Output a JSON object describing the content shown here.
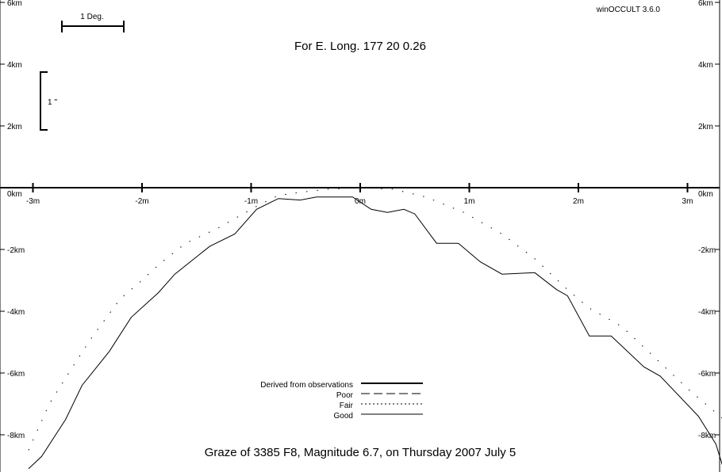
{
  "app_version": "winOCCULT 3.6.0",
  "header": {
    "longitude_text": "For E. Long.  177 20  0.26"
  },
  "footer": {
    "graze_text": "Graze of     3385   F8,  Magnitude   6.7,  on Thursday  2007  July   5"
  },
  "scales": {
    "degree_label": "1 Deg.",
    "arcsec_label": "1 ''"
  },
  "legend": {
    "derived": "Derived from observations",
    "poor": "Poor",
    "fair": "Fair",
    "good": "Good"
  },
  "chart_data": {
    "type": "line",
    "xlabel": "",
    "ylabel": "",
    "x_ticks": [
      "-3m",
      "-2m",
      "-1m",
      "0m",
      "1m",
      "2m",
      "3m"
    ],
    "y_ticks": [
      "6km",
      "4km",
      "2km",
      "0km",
      "-2km",
      "-4km",
      "-6km",
      "-8km"
    ],
    "xlim": [
      -3.1,
      3.33
    ],
    "ylim": [
      -9.1,
      6.2
    ],
    "x_unit": "minutes",
    "y_unit": "km",
    "series": [
      {
        "name": "Good",
        "style": "solid",
        "points": [
          [
            -3.04,
            -9.1
          ],
          [
            -2.92,
            -8.7
          ],
          [
            -2.7,
            -7.5
          ],
          [
            -2.55,
            -6.4
          ],
          [
            -2.3,
            -5.3
          ],
          [
            -2.1,
            -4.2
          ],
          [
            -1.85,
            -3.4
          ],
          [
            -1.7,
            -2.8
          ],
          [
            -1.38,
            -1.9
          ],
          [
            -1.15,
            -1.5
          ],
          [
            -0.95,
            -0.7
          ],
          [
            -0.75,
            -0.35
          ],
          [
            -0.55,
            -0.4
          ],
          [
            -0.4,
            -0.3
          ],
          [
            -0.25,
            -0.3
          ],
          [
            -0.07,
            -0.3
          ],
          [
            0.1,
            -0.7
          ],
          [
            0.25,
            -0.8
          ],
          [
            0.4,
            -0.7
          ],
          [
            0.5,
            -0.85
          ],
          [
            0.7,
            -1.8
          ],
          [
            0.9,
            -1.8
          ],
          [
            1.1,
            -2.4
          ],
          [
            1.3,
            -2.8
          ],
          [
            1.6,
            -2.75
          ],
          [
            1.8,
            -3.3
          ],
          [
            1.9,
            -3.5
          ],
          [
            2.1,
            -4.8
          ],
          [
            2.3,
            -4.8
          ],
          [
            2.6,
            -5.8
          ],
          [
            2.75,
            -6.1
          ],
          [
            3.1,
            -7.4
          ],
          [
            3.26,
            -8.3
          ],
          [
            3.33,
            -9.1
          ]
        ]
      },
      {
        "name": "Fair",
        "style": "dotted",
        "points": [
          [
            -3.04,
            -8.5
          ],
          [
            -2.85,
            -7.0
          ],
          [
            -2.6,
            -5.6
          ],
          [
            -2.45,
            -4.8
          ],
          [
            -2.2,
            -3.6
          ],
          [
            -2.0,
            -3.0
          ],
          [
            -1.85,
            -2.5
          ],
          [
            -1.6,
            -1.8
          ],
          [
            -1.3,
            -1.3
          ],
          [
            -0.95,
            -0.6
          ],
          [
            -0.75,
            -0.25
          ],
          [
            -0.55,
            -0.15
          ],
          [
            -0.3,
            -0.05
          ],
          [
            0.0,
            0.0
          ],
          [
            0.3,
            -0.05
          ],
          [
            0.6,
            -0.3
          ],
          [
            0.95,
            -0.8
          ],
          [
            1.3,
            -1.5
          ],
          [
            1.6,
            -2.3
          ],
          [
            1.9,
            -3.3
          ],
          [
            2.1,
            -3.9
          ],
          [
            2.4,
            -4.5
          ],
          [
            2.7,
            -5.5
          ],
          [
            3.0,
            -6.5
          ],
          [
            3.33,
            -7.5
          ]
        ]
      }
    ]
  }
}
